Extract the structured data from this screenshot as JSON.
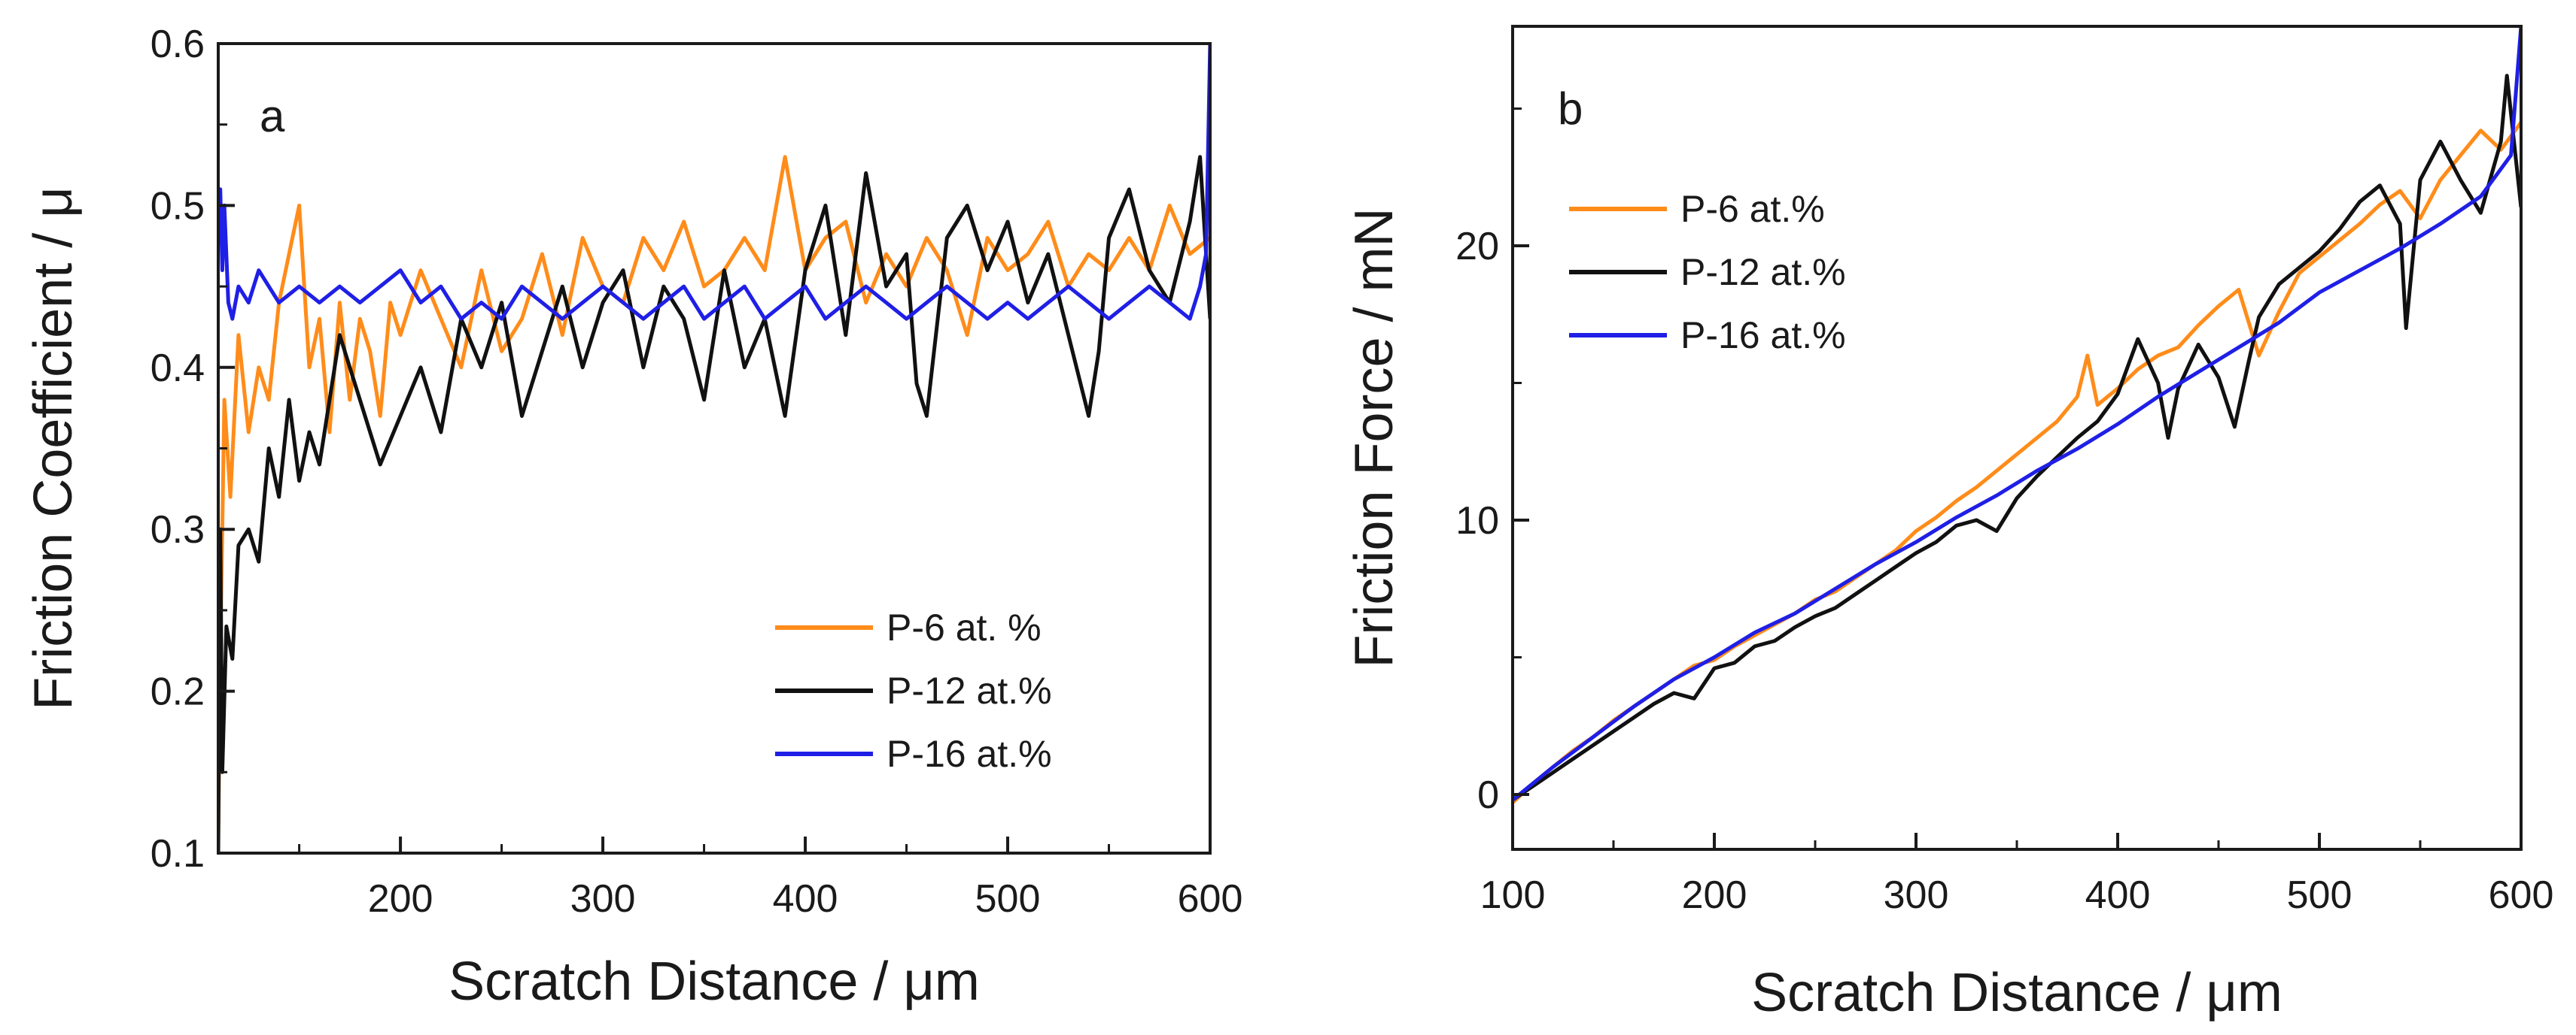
{
  "chart_data": [
    {
      "type": "line",
      "panel_label": "a",
      "xlabel": "Scratch Distance / μm",
      "ylabel": "Friction Coefficient / μ",
      "xlim": [
        110,
        600
      ],
      "ylim": [
        0.1,
        0.6
      ],
      "xticks": [
        200,
        300,
        400,
        500,
        600
      ],
      "xtick_labels": [
        "200",
        "300",
        "400",
        "500",
        "600"
      ],
      "yticks": [
        0.1,
        0.2,
        0.3,
        0.4,
        0.5,
        0.6
      ],
      "ytick_labels": [
        "0.1",
        "0.2",
        "0.3",
        "0.4",
        "0.5",
        "0.6"
      ],
      "legend_position": "lower-right",
      "series": [
        {
          "name": "P-6 at. %",
          "color": "#ff8c1a",
          "x": [
            110,
            111,
            113,
            116,
            120,
            125,
            130,
            135,
            140,
            145,
            150,
            155,
            160,
            165,
            170,
            175,
            180,
            185,
            190,
            195,
            200,
            210,
            220,
            230,
            240,
            250,
            260,
            270,
            280,
            290,
            300,
            310,
            320,
            330,
            340,
            350,
            360,
            370,
            380,
            390,
            400,
            410,
            420,
            430,
            440,
            450,
            460,
            470,
            480,
            490,
            500,
            510,
            520,
            530,
            540,
            550,
            560,
            570,
            580,
            590,
            600
          ],
          "y": [
            0.11,
            0.22,
            0.38,
            0.32,
            0.42,
            0.36,
            0.4,
            0.38,
            0.44,
            0.47,
            0.5,
            0.4,
            0.43,
            0.36,
            0.44,
            0.38,
            0.43,
            0.41,
            0.37,
            0.44,
            0.42,
            0.46,
            0.43,
            0.4,
            0.46,
            0.41,
            0.43,
            0.47,
            0.42,
            0.48,
            0.45,
            0.44,
            0.48,
            0.46,
            0.49,
            0.45,
            0.46,
            0.48,
            0.46,
            0.53,
            0.46,
            0.48,
            0.49,
            0.44,
            0.47,
            0.45,
            0.48,
            0.46,
            0.42,
            0.48,
            0.46,
            0.47,
            0.49,
            0.45,
            0.47,
            0.46,
            0.48,
            0.46,
            0.5,
            0.47,
            0.48
          ]
        },
        {
          "name": "P-12 at.%",
          "color": "#111111",
          "x": [
            110,
            111,
            112,
            114,
            117,
            120,
            125,
            130,
            135,
            140,
            145,
            150,
            155,
            160,
            170,
            180,
            190,
            200,
            210,
            220,
            230,
            240,
            250,
            260,
            270,
            280,
            290,
            300,
            310,
            320,
            330,
            340,
            350,
            360,
            370,
            380,
            390,
            400,
            410,
            420,
            430,
            440,
            450,
            455,
            460,
            470,
            480,
            490,
            500,
            510,
            520,
            530,
            540,
            545,
            550,
            560,
            570,
            580,
            590,
            595,
            600
          ],
          "y": [
            0.1,
            0.3,
            0.15,
            0.24,
            0.22,
            0.29,
            0.3,
            0.28,
            0.35,
            0.32,
            0.38,
            0.33,
            0.36,
            0.34,
            0.42,
            0.38,
            0.34,
            0.37,
            0.4,
            0.36,
            0.43,
            0.4,
            0.44,
            0.37,
            0.41,
            0.45,
            0.4,
            0.44,
            0.46,
            0.4,
            0.45,
            0.43,
            0.38,
            0.46,
            0.4,
            0.43,
            0.37,
            0.46,
            0.5,
            0.42,
            0.52,
            0.45,
            0.47,
            0.39,
            0.37,
            0.48,
            0.5,
            0.46,
            0.49,
            0.44,
            0.47,
            0.42,
            0.37,
            0.41,
            0.48,
            0.51,
            0.46,
            0.44,
            0.49,
            0.53,
            0.43
          ]
        },
        {
          "name": "P-16 at.%",
          "color": "#1f1fe6",
          "x": [
            110,
            111,
            112,
            113,
            115,
            117,
            120,
            125,
            130,
            140,
            150,
            160,
            170,
            180,
            190,
            200,
            210,
            220,
            230,
            240,
            250,
            260,
            270,
            280,
            290,
            300,
            310,
            320,
            330,
            340,
            350,
            360,
            370,
            380,
            390,
            400,
            410,
            420,
            430,
            440,
            450,
            460,
            470,
            480,
            490,
            500,
            510,
            520,
            530,
            540,
            550,
            560,
            570,
            580,
            590,
            595,
            598,
            600
          ],
          "y": [
            0.49,
            0.51,
            0.46,
            0.5,
            0.44,
            0.43,
            0.45,
            0.44,
            0.46,
            0.44,
            0.45,
            0.44,
            0.45,
            0.44,
            0.45,
            0.46,
            0.44,
            0.45,
            0.43,
            0.44,
            0.43,
            0.45,
            0.44,
            0.43,
            0.44,
            0.45,
            0.44,
            0.43,
            0.44,
            0.45,
            0.43,
            0.44,
            0.45,
            0.43,
            0.44,
            0.45,
            0.43,
            0.44,
            0.45,
            0.44,
            0.43,
            0.44,
            0.45,
            0.44,
            0.43,
            0.44,
            0.43,
            0.44,
            0.45,
            0.44,
            0.43,
            0.44,
            0.45,
            0.44,
            0.43,
            0.45,
            0.47,
            0.6
          ]
        }
      ]
    },
    {
      "type": "line",
      "panel_label": "b",
      "xlabel": "Scratch Distance / μm",
      "ylabel": "Friction Force / mN",
      "xlim": [
        100,
        600
      ],
      "ylim": [
        -2,
        28
      ],
      "xticks": [
        100,
        200,
        300,
        400,
        500,
        600
      ],
      "xtick_labels": [
        "100",
        "200",
        "300",
        "400",
        "500",
        "600"
      ],
      "yticks": [
        0,
        10,
        20
      ],
      "ytick_labels": [
        "0",
        "10",
        "20"
      ],
      "legend_position": "top-left",
      "series": [
        {
          "name": "P-6 at.%",
          "color": "#ff8c1a",
          "x": [
            100,
            110,
            120,
            130,
            140,
            150,
            160,
            170,
            180,
            190,
            200,
            210,
            220,
            230,
            240,
            250,
            260,
            270,
            280,
            290,
            300,
            310,
            320,
            330,
            340,
            350,
            360,
            370,
            380,
            385,
            390,
            400,
            410,
            420,
            430,
            440,
            450,
            460,
            470,
            480,
            490,
            500,
            510,
            520,
            530,
            540,
            550,
            560,
            570,
            580,
            590,
            600
          ],
          "y": [
            -0.3,
            0.4,
            1.0,
            1.6,
            2.1,
            2.7,
            3.2,
            3.7,
            4.2,
            4.7,
            4.9,
            5.4,
            5.8,
            6.2,
            6.6,
            7.1,
            7.4,
            7.9,
            8.4,
            8.9,
            9.6,
            10.1,
            10.7,
            11.2,
            11.8,
            12.4,
            13.0,
            13.6,
            14.5,
            16.0,
            14.2,
            14.8,
            15.5,
            16.0,
            16.3,
            17.1,
            17.8,
            18.4,
            16.0,
            17.6,
            19.0,
            19.6,
            20.2,
            20.8,
            21.5,
            22.0,
            21.0,
            22.4,
            23.3,
            24.2,
            23.5,
            24.5
          ]
        },
        {
          "name": "P-12 at.%",
          "color": "#111111",
          "x": [
            100,
            110,
            120,
            130,
            140,
            150,
            160,
            170,
            180,
            190,
            200,
            210,
            220,
            230,
            240,
            250,
            260,
            270,
            280,
            290,
            300,
            310,
            320,
            330,
            340,
            350,
            360,
            370,
            380,
            390,
            400,
            410,
            420,
            425,
            430,
            440,
            450,
            458,
            465,
            470,
            480,
            490,
            500,
            510,
            520,
            530,
            540,
            543,
            550,
            560,
            570,
            580,
            590,
            593,
            600
          ],
          "y": [
            -0.2,
            0.3,
            0.8,
            1.3,
            1.8,
            2.3,
            2.8,
            3.3,
            3.7,
            3.5,
            4.6,
            4.8,
            5.4,
            5.6,
            6.1,
            6.5,
            6.8,
            7.3,
            7.8,
            8.3,
            8.8,
            9.2,
            9.8,
            10.0,
            9.6,
            10.8,
            11.6,
            12.3,
            13.0,
            13.6,
            14.6,
            16.6,
            15.0,
            13.0,
            14.8,
            16.4,
            15.2,
            13.4,
            15.8,
            17.4,
            18.6,
            19.2,
            19.8,
            20.6,
            21.6,
            22.2,
            20.8,
            17.0,
            22.4,
            23.8,
            22.4,
            21.2,
            23.8,
            26.2,
            21.4
          ]
        },
        {
          "name": "P-16 at.%",
          "color": "#1f1fe6",
          "x": [
            100,
            120,
            140,
            160,
            180,
            200,
            220,
            240,
            260,
            280,
            300,
            320,
            340,
            360,
            380,
            400,
            420,
            440,
            460,
            480,
            500,
            520,
            540,
            560,
            580,
            595,
            600
          ],
          "y": [
            -0.2,
            1.0,
            2.1,
            3.2,
            4.2,
            5.0,
            5.9,
            6.6,
            7.5,
            8.4,
            9.2,
            10.1,
            10.9,
            11.8,
            12.6,
            13.5,
            14.5,
            15.4,
            16.3,
            17.2,
            18.3,
            19.1,
            19.9,
            20.8,
            21.8,
            23.3,
            28.0
          ]
        }
      ]
    }
  ]
}
